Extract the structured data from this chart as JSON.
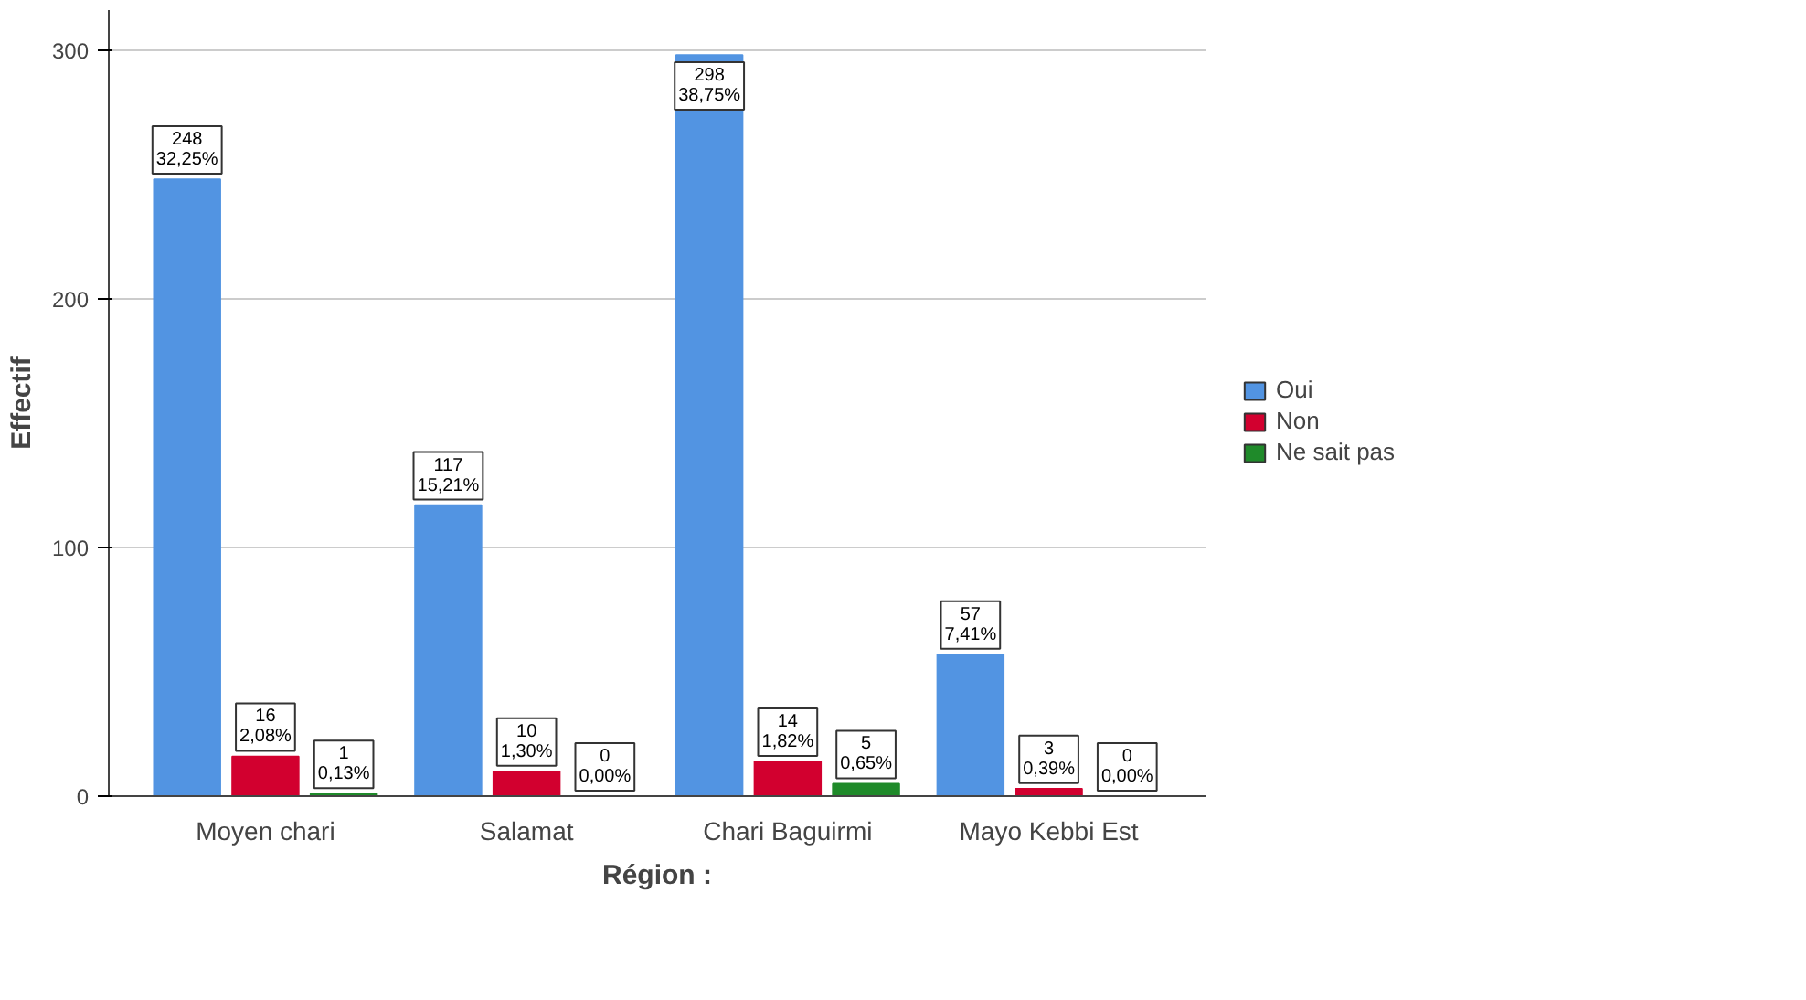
{
  "chart_data": {
    "type": "bar",
    "xlabel": "Région :",
    "ylabel": "Effectif",
    "categories": [
      "Moyen chari",
      "Salamat",
      "Chari Baguirmi",
      "Mayo Kebbi Est"
    ],
    "series": [
      {
        "name": "Oui",
        "color": "#5294e2",
        "values": [
          248,
          117,
          298,
          57
        ],
        "value_labels": [
          "248\n32,25%",
          "117\n15,21%",
          "298\n38,75%",
          "57\n7,41%"
        ]
      },
      {
        "name": "Non",
        "color": "#d2002f",
        "values": [
          16,
          10,
          14,
          3
        ],
        "value_labels": [
          "16\n2,08%",
          "10\n1,30%",
          "14\n1,82%",
          "3\n0,39%"
        ]
      },
      {
        "name": "Ne sait pas",
        "color": "#1f8a2a",
        "values": [
          1,
          0,
          5,
          0
        ],
        "value_labels": [
          "1\n0,13%",
          "0\n0,00%",
          "5\n0,65%",
          "0\n0,00%"
        ]
      }
    ],
    "ylim": [
      0,
      316
    ],
    "yticks": [
      0,
      100,
      200,
      300
    ],
    "grid": "y",
    "legend": "right"
  }
}
